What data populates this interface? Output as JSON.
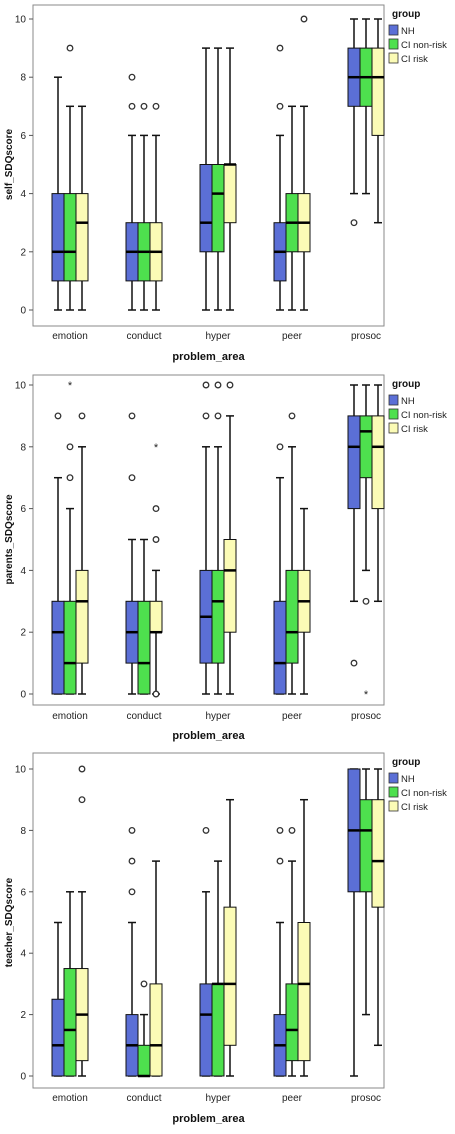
{
  "colors": {
    "NH": "#5b6fd6",
    "CI non-risk": "#4ee04e",
    "CI risk": "#fbfbb6",
    "border": "#111111",
    "outlier": "#333333"
  },
  "chart_data": [
    {
      "type": "boxplot",
      "xlabel": "problem_area",
      "ylabel": "self_SDQscore",
      "ylim": [
        0,
        10
      ],
      "yticks": [
        "0",
        "2",
        "4",
        "6",
        "8",
        "10"
      ],
      "categories": [
        "emotion",
        "conduct",
        "hyper",
        "peer",
        "prosoc"
      ],
      "legend": {
        "title": "group",
        "placement": "right",
        "items": [
          "NH",
          "CI non-risk",
          "CI risk"
        ]
      },
      "series": [
        {
          "name": "NH",
          "boxes": [
            {
              "min": 0,
              "q1": 1,
              "median": 2,
              "q3": 4,
              "max": 8,
              "outliers": []
            },
            {
              "min": 0,
              "q1": 1,
              "median": 2,
              "q3": 3,
              "max": 6,
              "outliers": [
                7,
                8
              ]
            },
            {
              "min": 0,
              "q1": 2,
              "median": 3,
              "q3": 5,
              "max": 9,
              "outliers": []
            },
            {
              "min": 0,
              "q1": 1,
              "median": 2,
              "q3": 3,
              "max": 6,
              "outliers": [
                7,
                9
              ]
            },
            {
              "min": 4,
              "q1": 7,
              "median": 8,
              "q3": 9,
              "max": 10,
              "outliers": [
                3
              ]
            }
          ]
        },
        {
          "name": "CI non-risk",
          "boxes": [
            {
              "min": 0,
              "q1": 1,
              "median": 2,
              "q3": 4,
              "max": 7,
              "outliers": [
                9
              ]
            },
            {
              "min": 0,
              "q1": 1,
              "median": 2,
              "q3": 3,
              "max": 6,
              "outliers": [
                7
              ]
            },
            {
              "min": 0,
              "q1": 2,
              "median": 4,
              "q3": 5,
              "max": 9,
              "outliers": []
            },
            {
              "min": 0,
              "q1": 2,
              "median": 3,
              "q3": 4,
              "max": 7,
              "outliers": []
            },
            {
              "min": 4,
              "q1": 7,
              "median": 8,
              "q3": 9,
              "max": 10,
              "outliers": []
            }
          ]
        },
        {
          "name": "CI risk",
          "boxes": [
            {
              "min": 0,
              "q1": 1,
              "median": 3,
              "q3": 4,
              "max": 7,
              "outliers": []
            },
            {
              "min": 0,
              "q1": 1,
              "median": 2,
              "q3": 3,
              "max": 6,
              "outliers": [
                7
              ]
            },
            {
              "min": 0,
              "q1": 3,
              "median": 5,
              "q3": 5,
              "max": 9,
              "outliers": []
            },
            {
              "min": 0,
              "q1": 2,
              "median": 3,
              "q3": 4,
              "max": 7,
              "outliers": [
                10
              ]
            },
            {
              "min": 3,
              "q1": 6,
              "median": 8,
              "q3": 9,
              "max": 10,
              "outliers": []
            }
          ]
        }
      ]
    },
    {
      "type": "boxplot",
      "xlabel": "problem_area",
      "ylabel": "parents_SDQscore",
      "ylim": [
        0,
        10
      ],
      "yticks": [
        "0",
        "2",
        "4",
        "6",
        "8",
        "10"
      ],
      "categories": [
        "emotion",
        "conduct",
        "hyper",
        "peer",
        "prosoc"
      ],
      "legend": {
        "title": "group",
        "placement": "right",
        "items": [
          "NH",
          "CI non-risk",
          "CI risk"
        ]
      },
      "series": [
        {
          "name": "NH",
          "boxes": [
            {
              "min": 0,
              "q1": 0,
              "median": 2,
              "q3": 3,
              "max": 7,
              "outliers": [
                9
              ]
            },
            {
              "min": 0,
              "q1": 1,
              "median": 2,
              "q3": 3,
              "max": 5,
              "outliers": [
                7,
                9
              ]
            },
            {
              "min": 0,
              "q1": 1,
              "median": 2.5,
              "q3": 4,
              "max": 8,
              "outliers": [
                9,
                10
              ]
            },
            {
              "min": 0,
              "q1": 0,
              "median": 1,
              "q3": 3,
              "max": 7,
              "outliers": [
                8
              ]
            },
            {
              "min": 3,
              "q1": 6,
              "median": 8,
              "q3": 9,
              "max": 10,
              "outliers": [
                1
              ]
            }
          ]
        },
        {
          "name": "CI non-risk",
          "boxes": [
            {
              "min": 0,
              "q1": 0,
              "median": 1,
              "q3": 3,
              "max": 6,
              "outliers": [
                7,
                8
              ]
            },
            {
              "min": 0,
              "q1": 0,
              "median": 1,
              "q3": 3,
              "max": 5,
              "outliers": []
            },
            {
              "min": 0,
              "q1": 1,
              "median": 3,
              "q3": 4,
              "max": 8,
              "outliers": [
                9,
                10
              ]
            },
            {
              "min": 0,
              "q1": 1,
              "median": 2,
              "q3": 4,
              "max": 8,
              "outliers": [
                9
              ]
            },
            {
              "min": 4,
              "q1": 7,
              "median": 8.5,
              "q3": 9,
              "max": 10,
              "outliers": [
                3
              ]
            }
          ]
        },
        {
          "name": "CI risk",
          "boxes": [
            {
              "min": 0,
              "q1": 1,
              "median": 3,
              "q3": 4,
              "max": 8,
              "outliers": [
                9
              ]
            },
            {
              "min": 0,
              "q1": 2,
              "median": 2,
              "q3": 3,
              "max": 4,
              "outliers": [
                0,
                5,
                6
              ]
            },
            {
              "min": 0,
              "q1": 2,
              "median": 4,
              "q3": 5,
              "max": 9,
              "outliers": [
                10
              ]
            },
            {
              "min": 0,
              "q1": 2,
              "median": 3,
              "q3": 4,
              "max": 6,
              "outliers": []
            },
            {
              "min": 3,
              "q1": 6,
              "median": 8,
              "q3": 9,
              "max": 10,
              "outliers": []
            }
          ]
        }
      ],
      "extreme_markers": [
        {
          "category": "emotion",
          "series": "CI non-risk",
          "value": 10
        },
        {
          "category": "conduct",
          "series": "CI risk",
          "value": 8
        },
        {
          "category": "prosoc",
          "series": "CI non-risk",
          "value": 0
        }
      ]
    },
    {
      "type": "boxplot",
      "xlabel": "problem_area",
      "ylabel": "teacher_SDQscore",
      "ylim": [
        0,
        10
      ],
      "yticks": [
        "0",
        "2",
        "4",
        "6",
        "8",
        "10"
      ],
      "categories": [
        "emotion",
        "conduct",
        "hyper",
        "peer",
        "prosoc"
      ],
      "legend": {
        "title": "group",
        "placement": "right",
        "items": [
          "NH",
          "CI non-risk",
          "CI risk"
        ]
      },
      "series": [
        {
          "name": "NH",
          "boxes": [
            {
              "min": 0,
              "q1": 0,
              "median": 1,
              "q3": 2.5,
              "max": 5,
              "outliers": []
            },
            {
              "min": 0,
              "q1": 0,
              "median": 1,
              "q3": 2,
              "max": 5,
              "outliers": [
                6,
                7,
                8
              ]
            },
            {
              "min": 0,
              "q1": 0,
              "median": 2,
              "q3": 3,
              "max": 6,
              "outliers": [
                8
              ]
            },
            {
              "min": 0,
              "q1": 0,
              "median": 1,
              "q3": 2,
              "max": 5,
              "outliers": [
                7,
                8
              ]
            },
            {
              "min": 0,
              "q1": 6,
              "median": 8,
              "q3": 10,
              "max": 10,
              "outliers": []
            }
          ]
        },
        {
          "name": "CI non-risk",
          "boxes": [
            {
              "min": 0,
              "q1": 0,
              "median": 1.5,
              "q3": 3.5,
              "max": 6,
              "outliers": []
            },
            {
              "min": 0,
              "q1": 0,
              "median": 0,
              "q3": 1,
              "max": 2,
              "outliers": [
                3
              ]
            },
            {
              "min": 0,
              "q1": 0,
              "median": 3,
              "q3": 3,
              "max": 7,
              "outliers": []
            },
            {
              "min": 0,
              "q1": 0.5,
              "median": 1.5,
              "q3": 3,
              "max": 7,
              "outliers": [
                8
              ]
            },
            {
              "min": 2,
              "q1": 6,
              "median": 8,
              "q3": 9,
              "max": 10,
              "outliers": []
            }
          ]
        },
        {
          "name": "CI risk",
          "boxes": [
            {
              "min": 0,
              "q1": 0.5,
              "median": 2,
              "q3": 3.5,
              "max": 6,
              "outliers": [
                9,
                10
              ]
            },
            {
              "min": 0,
              "q1": 0,
              "median": 1,
              "q3": 3,
              "max": 7,
              "outliers": []
            },
            {
              "min": 0,
              "q1": 1,
              "median": 3,
              "q3": 5.5,
              "max": 9,
              "outliers": []
            },
            {
              "min": 0,
              "q1": 0.5,
              "median": 3,
              "q3": 5,
              "max": 9,
              "outliers": []
            },
            {
              "min": 1,
              "q1": 5.5,
              "median": 7,
              "q3": 9,
              "max": 10,
              "outliers": []
            }
          ]
        }
      ]
    }
  ]
}
